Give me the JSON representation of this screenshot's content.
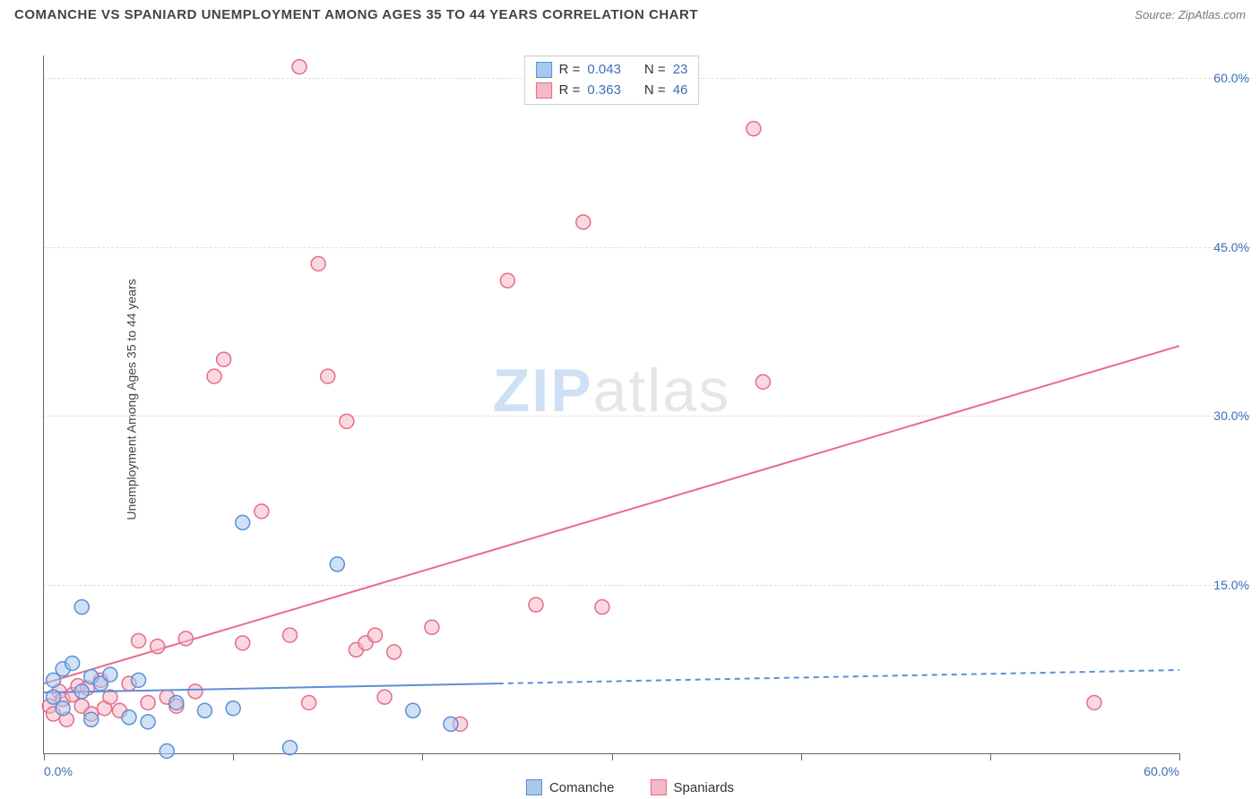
{
  "header": {
    "title": "COMANCHE VS SPANIARD UNEMPLOYMENT AMONG AGES 35 TO 44 YEARS CORRELATION CHART",
    "source_label": "Source:",
    "source_name": "ZipAtlas.com"
  },
  "chart": {
    "type": "scatter",
    "y_axis_label": "Unemployment Among Ages 35 to 44 years",
    "xlim": [
      0,
      60
    ],
    "ylim": [
      0,
      62
    ],
    "x_ticks": [
      0,
      10,
      20,
      30,
      40,
      50,
      60
    ],
    "x_tick_labels_shown": {
      "min": "0.0%",
      "max": "60.0%"
    },
    "y_ticks": [
      15,
      30,
      45,
      60
    ],
    "y_tick_labels": [
      "15.0%",
      "30.0%",
      "45.0%",
      "60.0%"
    ],
    "grid_color": "#dddddd",
    "background_color": "#ffffff",
    "marker_radius": 8,
    "marker_stroke_width": 1.5,
    "trend_line_width": 2,
    "series": [
      {
        "name": "Comanche",
        "fill_color": "#a8c8ec",
        "stroke_color": "#5b8fd6",
        "fill_opacity": 0.55,
        "r_value": "0.043",
        "n_value": "23",
        "trend": {
          "x1": 0,
          "y1": 5.4,
          "x2": 60,
          "y2": 7.4,
          "solid_until_x": 24
        },
        "points": [
          [
            0.5,
            5.0
          ],
          [
            0.5,
            6.5
          ],
          [
            1.0,
            4.0
          ],
          [
            1.0,
            7.5
          ],
          [
            1.5,
            8.0
          ],
          [
            2.0,
            13.0
          ],
          [
            2.0,
            5.5
          ],
          [
            2.5,
            6.8
          ],
          [
            2.5,
            3.0
          ],
          [
            3.0,
            6.2
          ],
          [
            3.5,
            7.0
          ],
          [
            4.5,
            3.2
          ],
          [
            5.0,
            6.5
          ],
          [
            5.5,
            2.8
          ],
          [
            6.5,
            0.2
          ],
          [
            7.0,
            4.5
          ],
          [
            8.5,
            3.8
          ],
          [
            10.0,
            4.0
          ],
          [
            10.5,
            20.5
          ],
          [
            13.0,
            0.5
          ],
          [
            15.5,
            16.8
          ],
          [
            19.5,
            3.8
          ],
          [
            21.5,
            2.6
          ]
        ]
      },
      {
        "name": "Spaniards",
        "fill_color": "#f4b8c6",
        "stroke_color": "#e86b8a",
        "fill_opacity": 0.55,
        "r_value": "0.363",
        "n_value": "46",
        "trend": {
          "x1": 0,
          "y1": 6.2,
          "x2": 60,
          "y2": 36.2,
          "solid_until_x": 60
        },
        "points": [
          [
            0.3,
            4.2
          ],
          [
            0.5,
            3.5
          ],
          [
            0.8,
            5.5
          ],
          [
            1.0,
            4.8
          ],
          [
            1.2,
            3.0
          ],
          [
            1.5,
            5.2
          ],
          [
            1.8,
            6.0
          ],
          [
            2.0,
            4.2
          ],
          [
            2.3,
            5.8
          ],
          [
            2.5,
            3.5
          ],
          [
            3.0,
            6.5
          ],
          [
            3.2,
            4.0
          ],
          [
            3.5,
            5.0
          ],
          [
            4.0,
            3.8
          ],
          [
            4.5,
            6.2
          ],
          [
            5.0,
            10.0
          ],
          [
            5.5,
            4.5
          ],
          [
            6.0,
            9.5
          ],
          [
            6.5,
            5.0
          ],
          [
            7.0,
            4.2
          ],
          [
            7.5,
            10.2
          ],
          [
            8.0,
            5.5
          ],
          [
            9.0,
            33.5
          ],
          [
            9.5,
            35.0
          ],
          [
            10.5,
            9.8
          ],
          [
            11.5,
            21.5
          ],
          [
            13.0,
            10.5
          ],
          [
            13.5,
            61.0
          ],
          [
            14.0,
            4.5
          ],
          [
            14.5,
            43.5
          ],
          [
            15.0,
            33.5
          ],
          [
            16.0,
            29.5
          ],
          [
            16.5,
            9.2
          ],
          [
            17.0,
            9.8
          ],
          [
            17.5,
            10.5
          ],
          [
            18.0,
            5.0
          ],
          [
            18.5,
            9.0
          ],
          [
            20.5,
            11.2
          ],
          [
            22.0,
            2.6
          ],
          [
            24.5,
            42.0
          ],
          [
            26.0,
            13.2
          ],
          [
            28.5,
            47.2
          ],
          [
            29.5,
            13.0
          ],
          [
            37.5,
            55.5
          ],
          [
            38.0,
            33.0
          ],
          [
            55.5,
            4.5
          ]
        ]
      }
    ],
    "stats_box": {
      "r_label": "R =",
      "n_label": "N ="
    },
    "bottom_legend": {
      "items": [
        "Comanche",
        "Spaniards"
      ]
    },
    "watermark": {
      "part1": "ZIP",
      "part2": "atlas"
    }
  }
}
